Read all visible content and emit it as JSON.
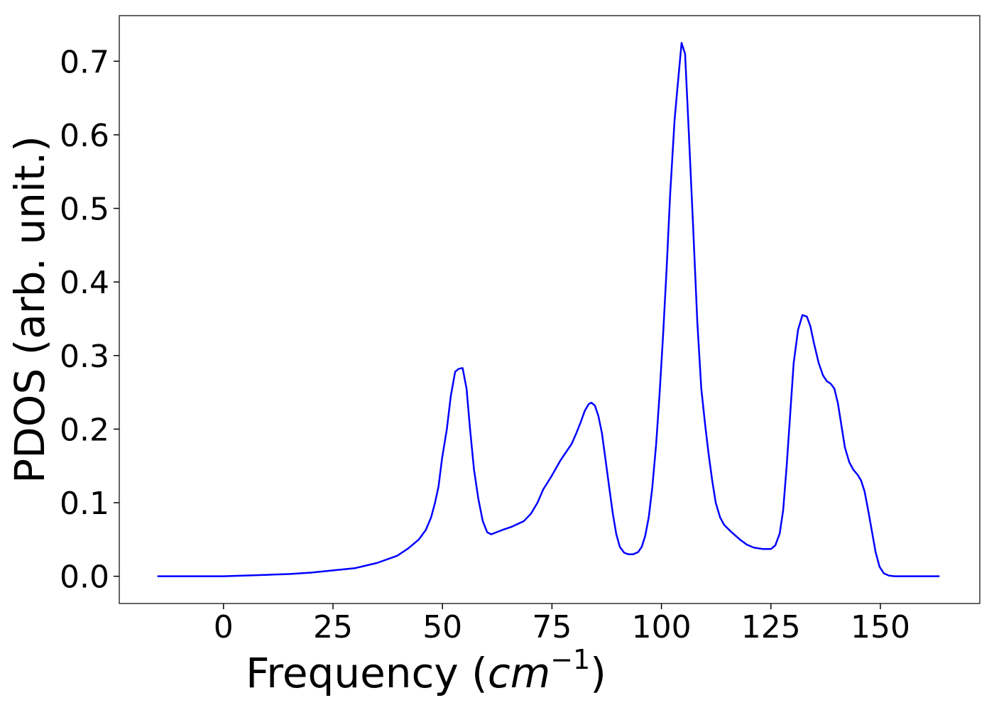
{
  "chart_data": {
    "type": "line",
    "xlabel": {
      "text": "Frequency (",
      "math": "cm",
      "sup": "−1",
      "end": ")"
    },
    "ylabel": "PDOS (arb. unit.)",
    "color": "#0000ff",
    "x": [
      -15.1,
      0,
      5,
      10,
      15,
      20,
      25,
      30,
      35,
      39.7,
      42.2,
      44.6,
      46.2,
      47.4,
      48.3,
      49.1,
      49.9,
      51,
      51.9,
      52.9,
      53.7,
      54.6,
      55.5,
      56.3,
      57.2,
      58.2,
      59.2,
      60.2,
      61.1,
      62.4,
      63.7,
      65.7,
      68.6,
      70.2,
      71.7,
      73,
      74.8,
      77,
      79.5,
      80.6,
      81.6,
      82.5,
      83.4,
      84,
      84.8,
      85.6,
      86.4,
      87.2,
      88.1,
      88.9,
      89.7,
      90.5,
      91.5,
      92.4,
      93.6,
      94.7,
      95.5,
      96.3,
      97.1,
      97.9,
      98.8,
      99.6,
      100.4,
      101.2,
      102,
      103,
      103.6,
      104.6,
      105.4,
      106.2,
      107.2,
      108.2,
      109.1,
      110,
      110.8,
      111.6,
      112.4,
      113.4,
      114.3,
      116,
      117.9,
      119.5,
      121.1,
      123.2,
      125,
      126,
      127,
      127.8,
      128.6,
      129.4,
      130.2,
      131.2,
      132.2,
      133.2,
      134,
      134.9,
      135.9,
      136.9,
      137.8,
      138.6,
      139.5,
      140.3,
      141.1,
      141.9,
      142.9,
      143.8,
      144.8,
      145.6,
      146.4,
      147.2,
      148.1,
      148.9,
      149.8,
      150.8,
      151.9,
      153.2,
      163.5
    ],
    "values": [
      0,
      0,
      0.001,
      0.002,
      0.003,
      0.005,
      0.008,
      0.011,
      0.018,
      0.028,
      0.038,
      0.05,
      0.063,
      0.08,
      0.1,
      0.122,
      0.16,
      0.2,
      0.245,
      0.278,
      0.282,
      0.283,
      0.255,
      0.2,
      0.145,
      0.105,
      0.075,
      0.06,
      0.057,
      0.06,
      0.063,
      0.067,
      0.075,
      0.085,
      0.1,
      0.118,
      0.135,
      0.158,
      0.18,
      0.195,
      0.21,
      0.225,
      0.234,
      0.236,
      0.232,
      0.218,
      0.195,
      0.16,
      0.12,
      0.085,
      0.057,
      0.04,
      0.032,
      0.03,
      0.03,
      0.033,
      0.04,
      0.055,
      0.08,
      0.12,
      0.18,
      0.25,
      0.33,
      0.42,
      0.52,
      0.62,
      0.66,
      0.725,
      0.71,
      0.61,
      0.48,
      0.345,
      0.255,
      0.205,
      0.165,
      0.13,
      0.1,
      0.08,
      0.07,
      0.06,
      0.05,
      0.043,
      0.039,
      0.037,
      0.037,
      0.042,
      0.058,
      0.09,
      0.15,
      0.22,
      0.29,
      0.335,
      0.355,
      0.353,
      0.34,
      0.315,
      0.29,
      0.273,
      0.265,
      0.262,
      0.255,
      0.235,
      0.205,
      0.175,
      0.155,
      0.145,
      0.138,
      0.13,
      0.115,
      0.09,
      0.06,
      0.033,
      0.013,
      0.004,
      0.001,
      0,
      0
    ],
    "xlim": [
      -23.8,
      172.7
    ],
    "ylim": [
      -0.037,
      0.762
    ],
    "xticks": [
      0,
      25,
      50,
      75,
      100,
      125,
      150
    ],
    "yticks": [
      {
        "value": 0,
        "label": "0.0"
      },
      0.1,
      0.2,
      0.3,
      0.4,
      0.5,
      0.6,
      0.7
    ]
  }
}
